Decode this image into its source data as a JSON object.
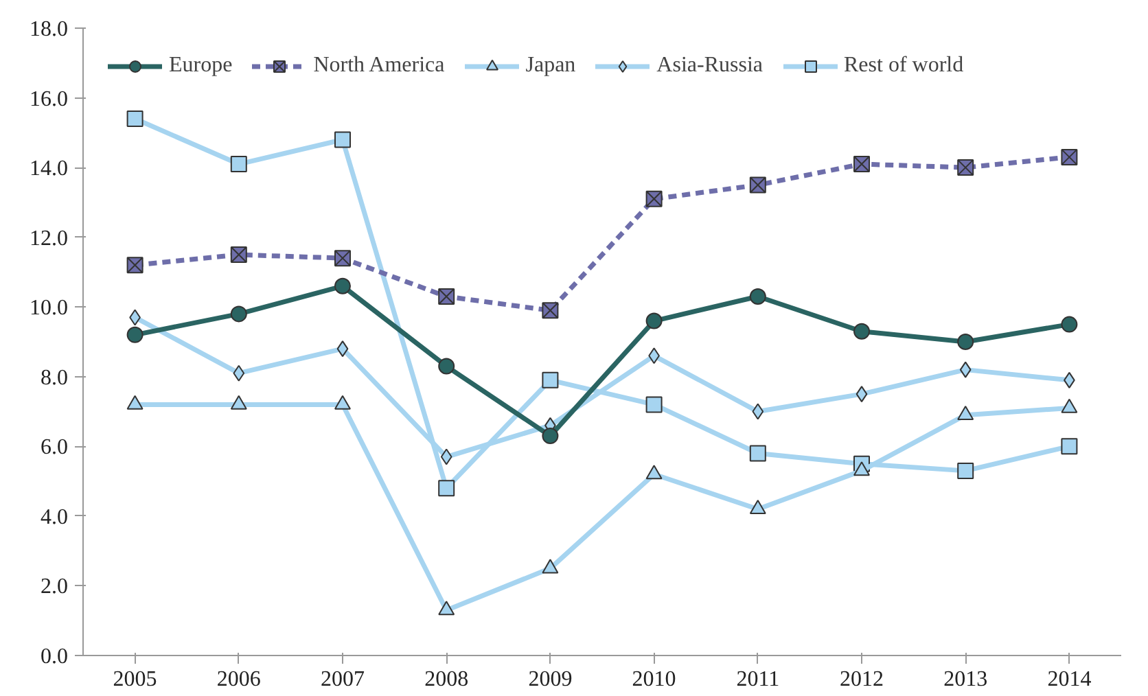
{
  "chart_data": {
    "type": "line",
    "categories": [
      "2005",
      "2006",
      "2007",
      "2008",
      "2009",
      "2010",
      "2011",
      "2012",
      "2013",
      "2014"
    ],
    "series": [
      {
        "name": "Europe",
        "color": "#2a6462",
        "marker": "circle",
        "line_style": "solid",
        "values": [
          9.2,
          9.8,
          10.6,
          8.3,
          6.3,
          9.6,
          10.3,
          9.3,
          9.0,
          9.5
        ]
      },
      {
        "name": "North America",
        "color": "#6e6eaa",
        "marker": "cross",
        "line_style": "dashed",
        "values": [
          11.2,
          11.5,
          11.4,
          10.3,
          9.9,
          13.1,
          13.5,
          14.1,
          14.0,
          14.3
        ]
      },
      {
        "name": "Japan",
        "color": "#a6d4f0",
        "marker": "triangle",
        "line_style": "solid",
        "values": [
          7.2,
          7.2,
          7.2,
          1.3,
          2.5,
          5.2,
          4.2,
          5.3,
          6.9,
          7.1
        ]
      },
      {
        "name": "Asia-Russia",
        "color": "#a6d4f0",
        "marker": "diamond",
        "line_style": "solid",
        "values": [
          9.7,
          8.1,
          8.8,
          5.7,
          6.6,
          8.6,
          7.0,
          7.5,
          8.2,
          7.9
        ]
      },
      {
        "name": "Rest of world",
        "color": "#a6d4f0",
        "marker": "square",
        "line_style": "solid",
        "values": [
          15.4,
          14.1,
          14.8,
          4.8,
          7.9,
          7.2,
          5.8,
          5.5,
          5.3,
          6.0
        ]
      }
    ],
    "ylim": [
      0,
      18
    ],
    "yticks": [
      {
        "value": 0,
        "label": "0.0"
      },
      {
        "value": 2,
        "label": "2.0"
      },
      {
        "value": 4,
        "label": "4.0"
      },
      {
        "value": 6,
        "label": "6.0"
      },
      {
        "value": 8,
        "label": "8.0"
      },
      {
        "value": 10,
        "label": "10.0"
      },
      {
        "value": 12,
        "label": "12.0"
      },
      {
        "value": 14,
        "label": "14.0"
      },
      {
        "value": 16,
        "label": "16.0"
      },
      {
        "value": 18,
        "label": "18.0"
      }
    ],
    "grid": false,
    "legend": "top left"
  }
}
